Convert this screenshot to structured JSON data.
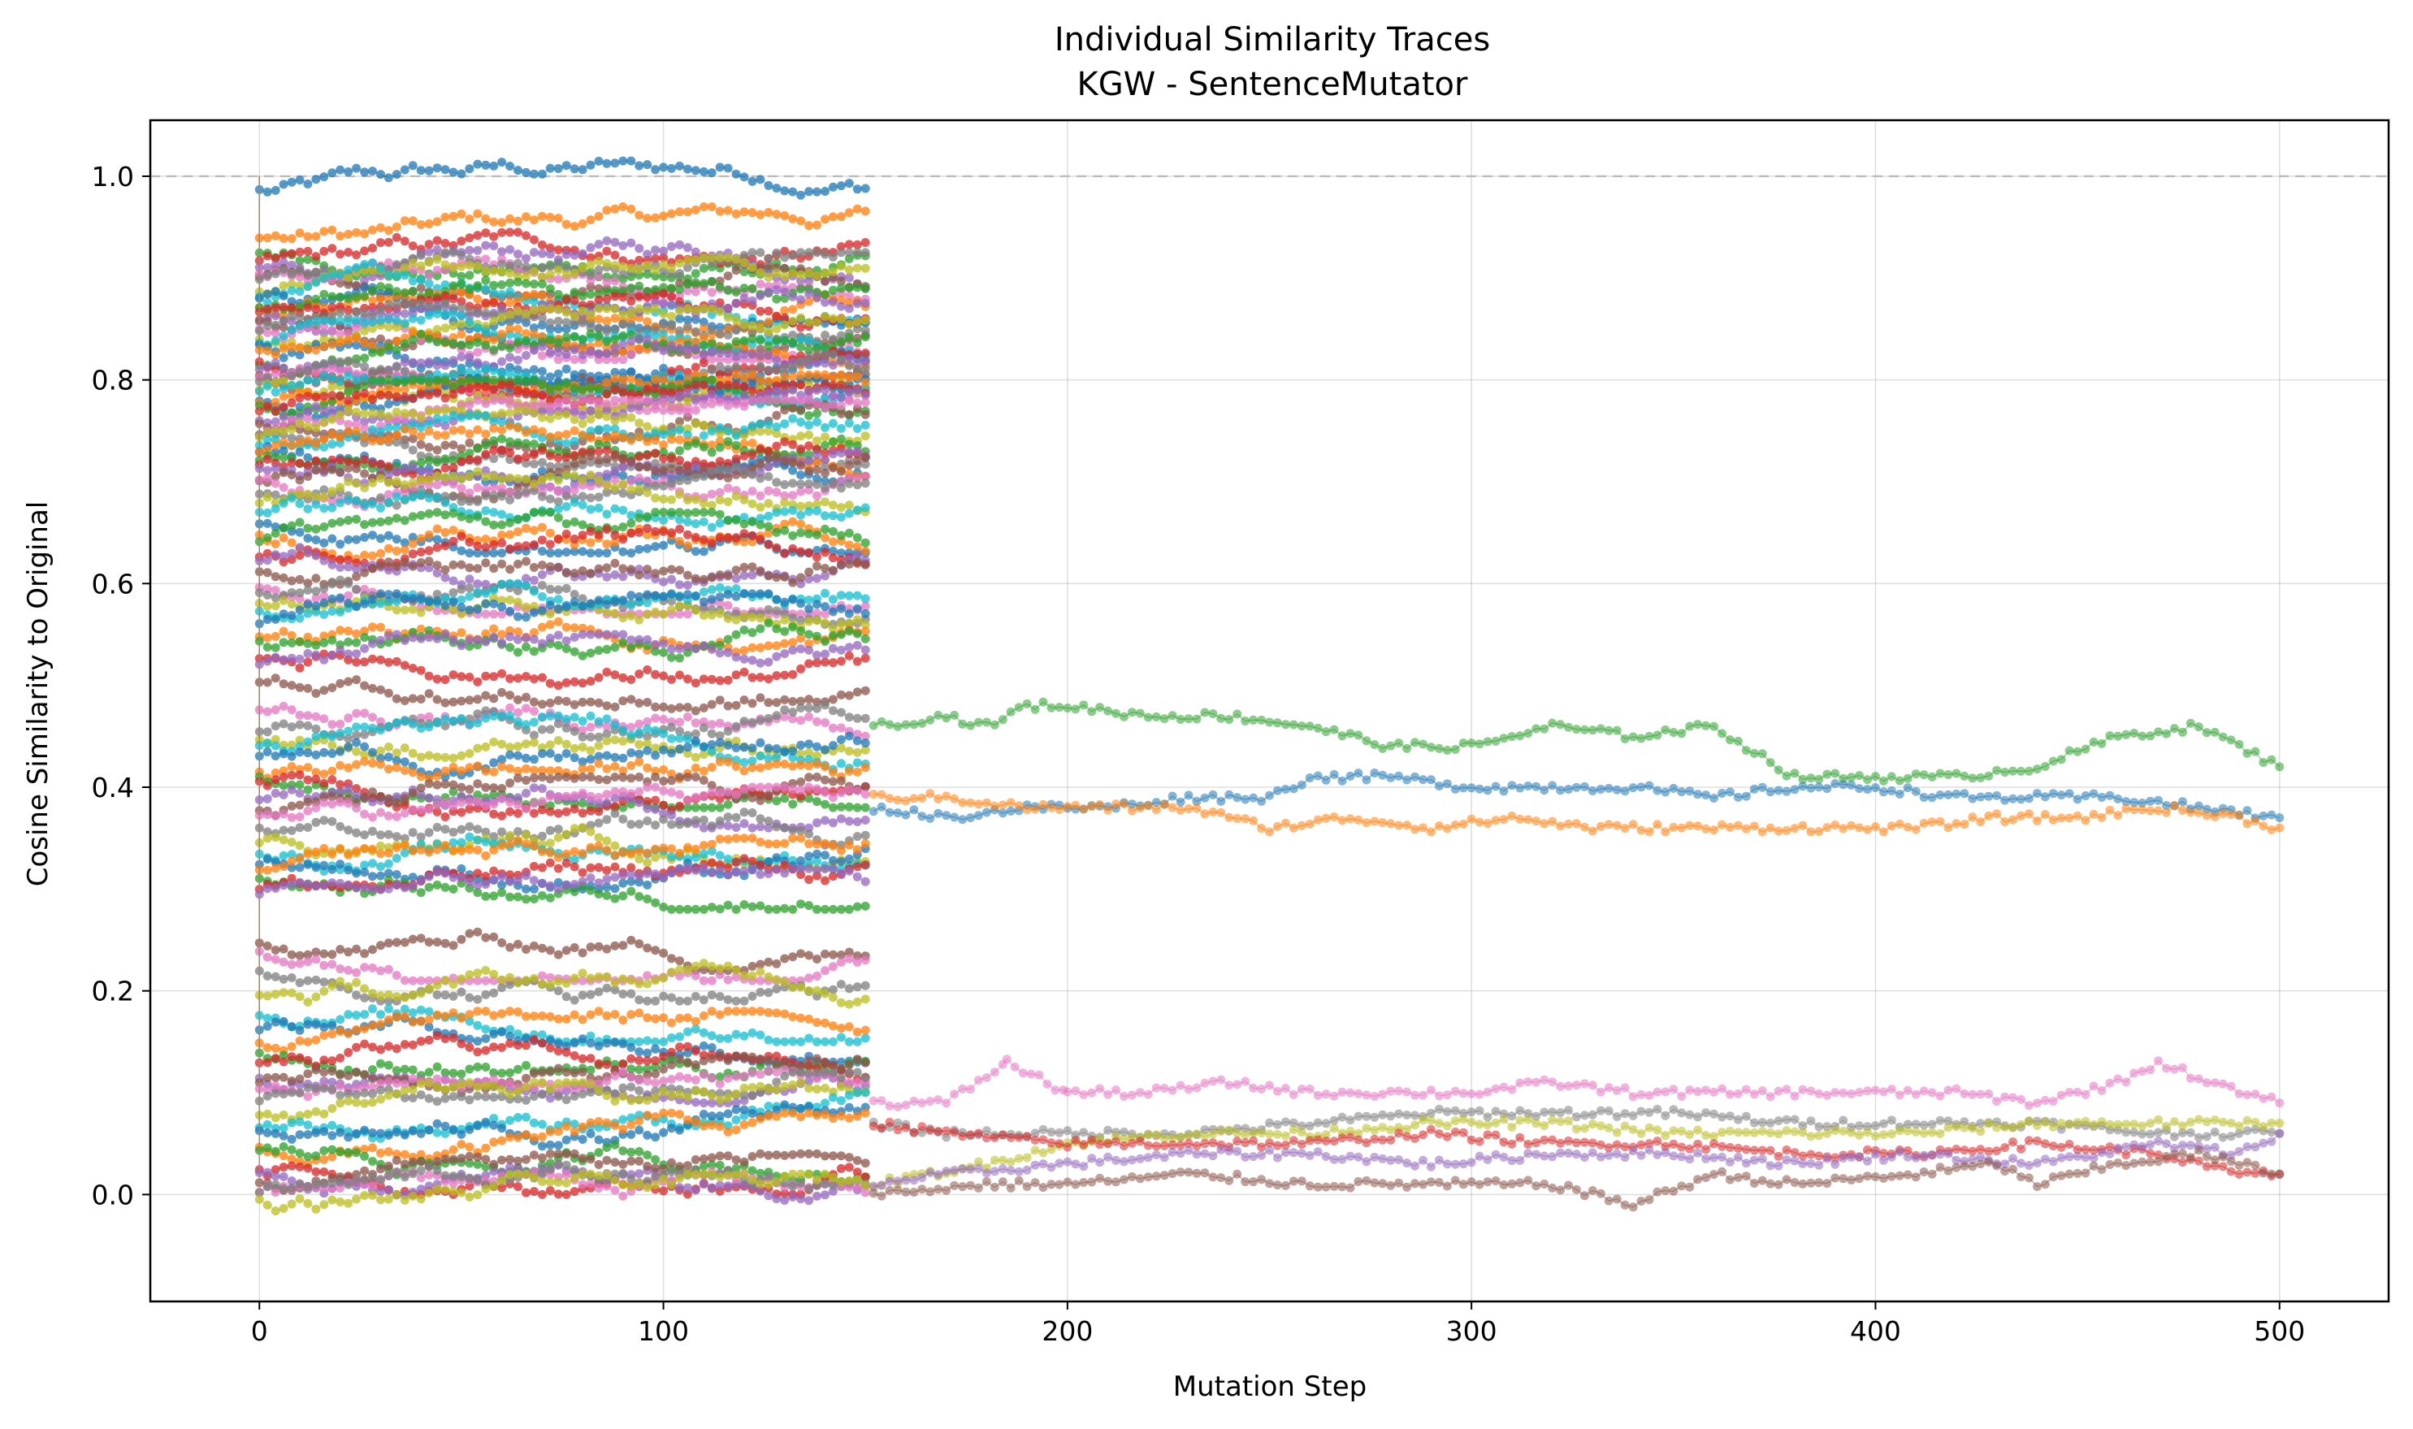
{
  "chart_data": {
    "type": "line",
    "title": "Individual Similarity Traces",
    "subtitle": "KGW - SentenceMutator",
    "xlabel": "Mutation Step",
    "ylabel": "Cosine Similarity to Original",
    "xlim": [
      -27,
      527
    ],
    "ylim": [
      -0.105,
      1.055
    ],
    "x_ticks": [
      0,
      100,
      200,
      300,
      400,
      500
    ],
    "y_ticks": [
      0.0,
      0.2,
      0.4,
      0.6,
      0.8,
      1.0
    ],
    "x_tick_labels": [
      "0",
      "100",
      "200",
      "300",
      "400",
      "500"
    ],
    "y_tick_labels": [
      "0.0",
      "0.2",
      "0.4",
      "0.6",
      "0.8",
      "1.0"
    ],
    "grid": true,
    "reference_line": {
      "y": 1.0,
      "style": "dashed",
      "color": "#bbbbbb"
    },
    "palette": [
      "#1f77b4",
      "#ff7f0e",
      "#2ca02c",
      "#d62728",
      "#9467bd",
      "#8c564b",
      "#e377c2",
      "#7f7f7f",
      "#bcbd22",
      "#17becf"
    ],
    "series_note_count": 130,
    "short_traces_end_step": 150,
    "short_trace_levels": [
      0.985,
      0.94,
      0.925,
      0.915,
      0.91,
      0.905,
      0.9,
      0.895,
      0.89,
      0.885,
      0.88,
      0.875,
      0.87,
      0.865,
      0.86,
      0.855,
      0.85,
      0.845,
      0.84,
      0.835,
      0.83,
      0.825,
      0.82,
      0.815,
      0.81,
      0.805,
      0.8,
      0.795,
      0.79,
      0.785,
      0.78,
      0.775,
      0.77,
      0.765,
      0.76,
      0.755,
      0.75,
      0.745,
      0.74,
      0.735,
      0.73,
      0.725,
      0.72,
      0.715,
      0.71,
      0.705,
      0.7,
      0.69,
      0.68,
      0.67,
      0.66,
      0.65,
      0.64,
      0.63,
      0.62,
      0.61,
      0.6,
      0.59,
      0.58,
      0.57,
      0.56,
      0.55,
      0.54,
      0.53,
      0.52,
      0.5,
      0.48,
      0.46,
      0.45,
      0.44,
      0.43,
      0.42,
      0.41,
      0.4,
      0.39,
      0.38,
      0.37,
      0.36,
      0.35,
      0.34,
      0.33,
      0.32,
      0.31,
      0.3,
      0.29,
      0.25,
      0.24,
      0.22,
      0.2,
      0.18,
      0.16,
      0.15,
      0.14,
      0.13,
      0.12,
      0.11,
      0.1,
      0.09,
      0.08,
      0.07,
      0.06,
      0.05,
      0.04,
      0.03,
      0.02,
      0.01,
      0.005,
      0.0,
      -0.01
    ],
    "long_traces": [
      {
        "color": "#2ca02c",
        "points": [
          [
            152,
            0.46
          ],
          [
            170,
            0.47
          ],
          [
            180,
            0.46
          ],
          [
            190,
            0.48
          ],
          [
            200,
            0.48
          ],
          [
            220,
            0.47
          ],
          [
            240,
            0.47
          ],
          [
            260,
            0.46
          ],
          [
            280,
            0.44
          ],
          [
            300,
            0.44
          ],
          [
            320,
            0.46
          ],
          [
            340,
            0.45
          ],
          [
            360,
            0.46
          ],
          [
            380,
            0.41
          ],
          [
            400,
            0.41
          ],
          [
            420,
            0.41
          ],
          [
            440,
            0.42
          ],
          [
            460,
            0.45
          ],
          [
            480,
            0.46
          ],
          [
            500,
            0.42
          ]
        ]
      },
      {
        "color": "#1f77b4",
        "points": [
          [
            152,
            0.38
          ],
          [
            170,
            0.37
          ],
          [
            190,
            0.38
          ],
          [
            210,
            0.38
          ],
          [
            230,
            0.39
          ],
          [
            250,
            0.39
          ],
          [
            260,
            0.41
          ],
          [
            280,
            0.41
          ],
          [
            300,
            0.4
          ],
          [
            320,
            0.4
          ],
          [
            340,
            0.4
          ],
          [
            360,
            0.39
          ],
          [
            380,
            0.4
          ],
          [
            400,
            0.4
          ],
          [
            420,
            0.39
          ],
          [
            440,
            0.39
          ],
          [
            460,
            0.39
          ],
          [
            480,
            0.38
          ],
          [
            500,
            0.37
          ]
        ]
      },
      {
        "color": "#ff7f0e",
        "points": [
          [
            152,
            0.39
          ],
          [
            170,
            0.39
          ],
          [
            190,
            0.38
          ],
          [
            210,
            0.38
          ],
          [
            230,
            0.38
          ],
          [
            250,
            0.36
          ],
          [
            270,
            0.37
          ],
          [
            290,
            0.36
          ],
          [
            310,
            0.37
          ],
          [
            330,
            0.36
          ],
          [
            350,
            0.36
          ],
          [
            370,
            0.36
          ],
          [
            390,
            0.36
          ],
          [
            410,
            0.36
          ],
          [
            430,
            0.37
          ],
          [
            450,
            0.37
          ],
          [
            470,
            0.38
          ],
          [
            490,
            0.37
          ],
          [
            500,
            0.36
          ]
        ]
      },
      {
        "color": "#e377c2",
        "points": [
          [
            152,
            0.09
          ],
          [
            170,
            0.09
          ],
          [
            185,
            0.13
          ],
          [
            200,
            0.1
          ],
          [
            220,
            0.1
          ],
          [
            240,
            0.11
          ],
          [
            260,
            0.1
          ],
          [
            280,
            0.1
          ],
          [
            300,
            0.1
          ],
          [
            320,
            0.11
          ],
          [
            340,
            0.1
          ],
          [
            360,
            0.1
          ],
          [
            380,
            0.1
          ],
          [
            400,
            0.1
          ],
          [
            420,
            0.1
          ],
          [
            440,
            0.09
          ],
          [
            460,
            0.11
          ],
          [
            470,
            0.13
          ],
          [
            490,
            0.1
          ],
          [
            500,
            0.09
          ]
        ]
      },
      {
        "color": "#7f7f7f",
        "points": [
          [
            152,
            0.07
          ],
          [
            170,
            0.06
          ],
          [
            200,
            0.06
          ],
          [
            230,
            0.06
          ],
          [
            260,
            0.07
          ],
          [
            290,
            0.08
          ],
          [
            320,
            0.08
          ],
          [
            350,
            0.08
          ],
          [
            380,
            0.07
          ],
          [
            410,
            0.07
          ],
          [
            440,
            0.07
          ],
          [
            470,
            0.06
          ],
          [
            500,
            0.06
          ]
        ]
      },
      {
        "color": "#bcbd22",
        "points": [
          [
            152,
            0.01
          ],
          [
            180,
            0.03
          ],
          [
            200,
            0.05
          ],
          [
            230,
            0.06
          ],
          [
            260,
            0.06
          ],
          [
            290,
            0.07
          ],
          [
            320,
            0.07
          ],
          [
            350,
            0.06
          ],
          [
            380,
            0.06
          ],
          [
            410,
            0.06
          ],
          [
            440,
            0.07
          ],
          [
            470,
            0.07
          ],
          [
            500,
            0.07
          ]
        ]
      },
      {
        "color": "#d62728",
        "points": [
          [
            152,
            0.07
          ],
          [
            170,
            0.06
          ],
          [
            200,
            0.05
          ],
          [
            230,
            0.05
          ],
          [
            260,
            0.05
          ],
          [
            290,
            0.06
          ],
          [
            320,
            0.05
          ],
          [
            350,
            0.05
          ],
          [
            380,
            0.04
          ],
          [
            410,
            0.04
          ],
          [
            440,
            0.05
          ],
          [
            470,
            0.04
          ],
          [
            490,
            0.02
          ],
          [
            500,
            0.02
          ]
        ]
      },
      {
        "color": "#9467bd",
        "points": [
          [
            152,
            0.01
          ],
          [
            170,
            0.02
          ],
          [
            200,
            0.03
          ],
          [
            230,
            0.04
          ],
          [
            260,
            0.04
          ],
          [
            290,
            0.03
          ],
          [
            320,
            0.04
          ],
          [
            350,
            0.04
          ],
          [
            380,
            0.03
          ],
          [
            410,
            0.04
          ],
          [
            440,
            0.03
          ],
          [
            470,
            0.05
          ],
          [
            490,
            0.04
          ],
          [
            500,
            0.06
          ]
        ]
      },
      {
        "color": "#8c564b",
        "points": [
          [
            152,
            0.0
          ],
          [
            180,
            0.01
          ],
          [
            200,
            0.01
          ],
          [
            230,
            0.02
          ],
          [
            260,
            0.01
          ],
          [
            290,
            0.01
          ],
          [
            320,
            0.01
          ],
          [
            340,
            -0.01
          ],
          [
            360,
            0.02
          ],
          [
            380,
            0.01
          ],
          [
            410,
            0.02
          ],
          [
            430,
            0.03
          ],
          [
            440,
            0.01
          ],
          [
            460,
            0.03
          ],
          [
            480,
            0.04
          ],
          [
            500,
            0.02
          ]
        ]
      }
    ]
  }
}
